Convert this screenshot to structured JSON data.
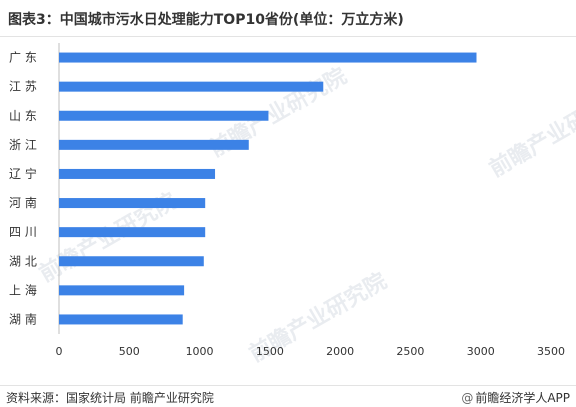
{
  "title": "图表3：中国城市污水日处理能力TOP10省份(单位：万立方米)",
  "source": "资料来源：国家统计局 前瞻产业研究院",
  "brand": "前瞻经济学人APP",
  "watermark": "前瞻产业研究院",
  "chart_data": {
    "type": "bar",
    "orientation": "horizontal",
    "categories": [
      "广 东",
      "江 苏",
      "山 东",
      "浙 江",
      "辽 宁",
      "河 南",
      "四 川",
      "湖 北",
      "上 海",
      "湖 南"
    ],
    "values": [
      2970,
      1880,
      1490,
      1350,
      1110,
      1040,
      1040,
      1030,
      890,
      880
    ],
    "xlim": [
      0,
      3500
    ],
    "ticks": [
      0,
      500,
      1000,
      1500,
      2000,
      2500,
      3000,
      3500
    ],
    "bar_color": "#3c82e6",
    "grid": false
  }
}
